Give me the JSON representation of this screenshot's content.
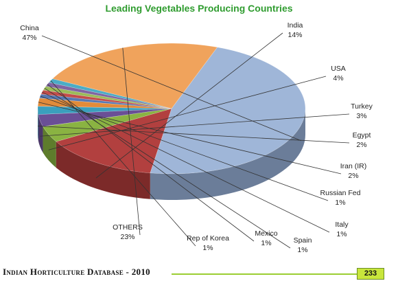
{
  "chart_data": {
    "type": "pie",
    "title": "Leading Vegetables Producing Countries",
    "unit": "%",
    "slices": [
      {
        "label": "China",
        "value": 47,
        "value_text": "47%",
        "color": "#9fb6d8",
        "side": "#6b7d99"
      },
      {
        "label": "India",
        "value": 14,
        "value_text": "14%",
        "color": "#b2403f",
        "side": "#7c2a29"
      },
      {
        "label": "USA",
        "value": 4,
        "value_text": "4%",
        "color": "#8ab342",
        "side": "#5e7c2c"
      },
      {
        "label": "Turkey",
        "value": 3,
        "value_text": "3%",
        "color": "#6a4f96",
        "side": "#4a3768"
      },
      {
        "label": "Egypt",
        "value": 2,
        "value_text": "2%",
        "color": "#3a9fbd",
        "side": "#287084"
      },
      {
        "label": "Iran (IR)",
        "value": 2,
        "value_text": "2%",
        "color": "#e28b3a",
        "side": "#9e5f26"
      },
      {
        "label": "Russian Fed",
        "value": 1,
        "value_text": "1%",
        "color": "#5678b3",
        "side": "#3b537d"
      },
      {
        "label": "Italy",
        "value": 1,
        "value_text": "1%",
        "color": "#c24d4b",
        "side": "#873533"
      },
      {
        "label": "Spain",
        "value": 1,
        "value_text": "1%",
        "color": "#9bbb59",
        "side": "#6b823d"
      },
      {
        "label": "Mexico",
        "value": 1,
        "value_text": "1%",
        "color": "#8064a2",
        "side": "#594671"
      },
      {
        "label": "Rep of Korea",
        "value": 1,
        "value_text": "1%",
        "color": "#4bacc6",
        "side": "#347889"
      },
      {
        "label": "OTHERS",
        "value": 23,
        "value_text": "23%",
        "color": "#f0a35c",
        "side": "#a5622c"
      }
    ]
  },
  "footer": {
    "title": "Indian Horticulture Database - 2010",
    "page": "233"
  }
}
